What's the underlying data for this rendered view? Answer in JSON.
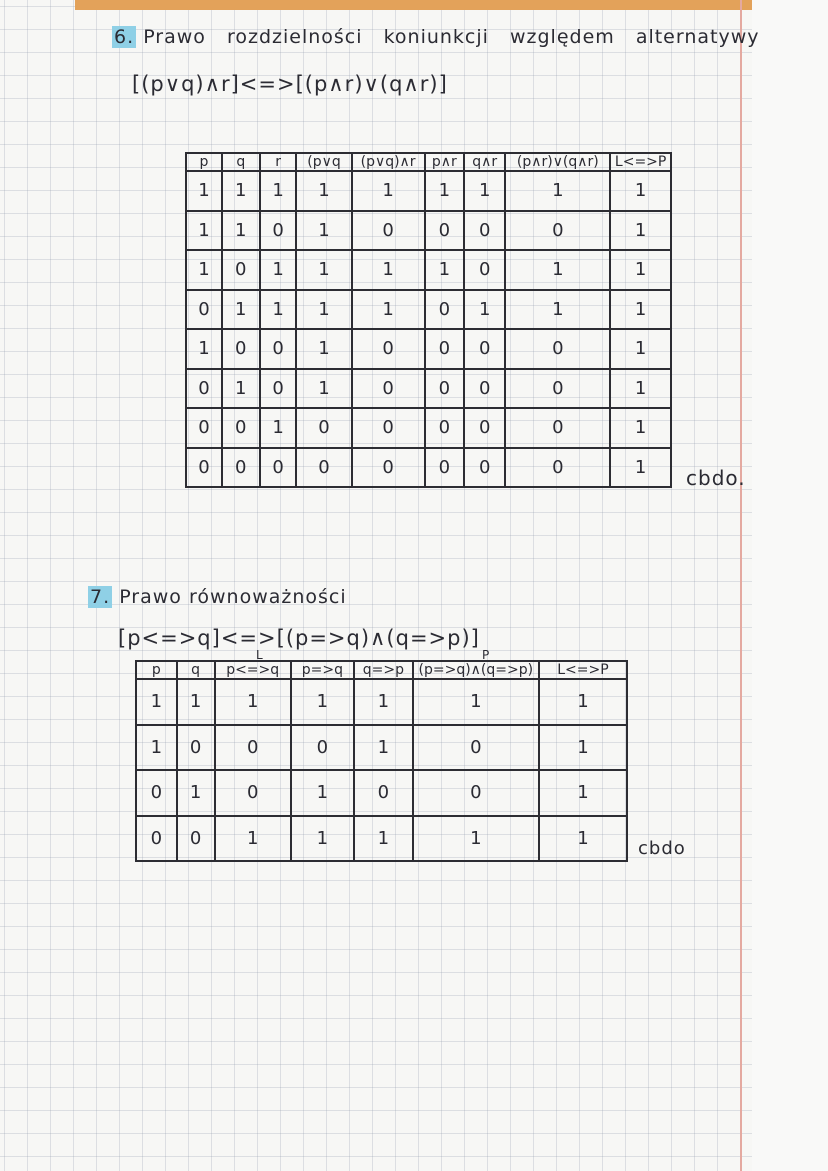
{
  "section6": {
    "number": "6.",
    "title": "Prawo rozdzielności koniunkcji względem alternatywy",
    "formula": "[(p∨q)∧r]<=>[(p∧r)∨(q∧r)]",
    "table": {
      "headers": [
        "p",
        "q",
        "r",
        "(p∨q",
        "(p∨q)∧r",
        "p∧r",
        "q∧r",
        "(p∧r)∨(q∧r)",
        "L<=>P"
      ],
      "rows": [
        [
          "1",
          "1",
          "1",
          "1",
          "1",
          "1",
          "1",
          "1",
          "1"
        ],
        [
          "1",
          "1",
          "0",
          "1",
          "0",
          "0",
          "0",
          "0",
          "1"
        ],
        [
          "1",
          "0",
          "1",
          "1",
          "1",
          "1",
          "0",
          "1",
          "1"
        ],
        [
          "0",
          "1",
          "1",
          "1",
          "1",
          "0",
          "1",
          "1",
          "1"
        ],
        [
          "1",
          "0",
          "0",
          "1",
          "0",
          "0",
          "0",
          "0",
          "1"
        ],
        [
          "0",
          "1",
          "0",
          "1",
          "0",
          "0",
          "0",
          "0",
          "1"
        ],
        [
          "0",
          "0",
          "1",
          "0",
          "0",
          "0",
          "0",
          "0",
          "1"
        ],
        [
          "0",
          "0",
          "0",
          "0",
          "0",
          "0",
          "0",
          "0",
          "1"
        ]
      ]
    },
    "conclusion": "cbdo."
  },
  "section7": {
    "number": "7.",
    "title": "Prawo równoważności",
    "formula": "[p<=>q]<=>[(p=>q)∧(q=>p)]",
    "label_left": "L",
    "label_right": "P",
    "table": {
      "headers": [
        "p",
        "q",
        "p<=>q",
        "p=>q",
        "q=>p",
        "(p=>q)∧(q=>p)",
        "L<=>P"
      ],
      "rows": [
        [
          "1",
          "1",
          "1",
          "1",
          "1",
          "1",
          "1"
        ],
        [
          "1",
          "0",
          "0",
          "0",
          "1",
          "0",
          "1"
        ],
        [
          "0",
          "1",
          "0",
          "1",
          "0",
          "0",
          "1"
        ],
        [
          "0",
          "0",
          "1",
          "1",
          "1",
          "1",
          "1"
        ]
      ]
    },
    "conclusion": "cbdo"
  }
}
